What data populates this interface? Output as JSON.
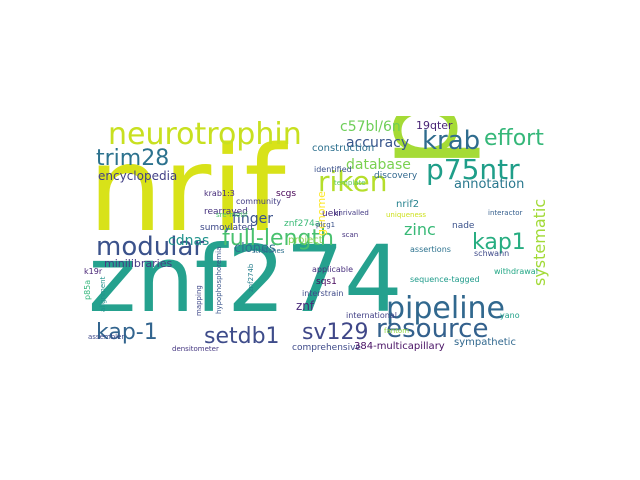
{
  "word_cloud": {
    "words": [
      {
        "text": "nrif",
        "color": "#d8e219"
      },
      {
        "text": "p75",
        "color": "#a5db36"
      },
      {
        "text": "znf274",
        "color": "#25a18e"
      },
      {
        "text": "neurotrophin",
        "color": "#c8e020"
      },
      {
        "text": "krab",
        "color": "#2f6c8e"
      },
      {
        "text": "effort",
        "color": "#35b779"
      },
      {
        "text": "p75ntr",
        "color": "#1f9e89"
      },
      {
        "text": "riken",
        "color": "#b5de2b"
      },
      {
        "text": "trim28",
        "color": "#2c728e"
      },
      {
        "text": "modular",
        "color": "#3b528b"
      },
      {
        "text": "full-length",
        "color": "#48c16e"
      },
      {
        "text": "kap1",
        "color": "#27ad81"
      },
      {
        "text": "pipeline",
        "color": "#31688e"
      },
      {
        "text": "resource",
        "color": "#34618d"
      },
      {
        "text": "kap-1",
        "color": "#32648e"
      },
      {
        "text": "setdb1",
        "color": "#3e4c8a"
      },
      {
        "text": "sv129",
        "color": "#3f4788"
      },
      {
        "text": "accuracy",
        "color": "#39568c"
      },
      {
        "text": "c57bl/6n",
        "color": "#6ece58"
      },
      {
        "text": "encyclopedia",
        "color": "#424086"
      },
      {
        "text": "annotation",
        "color": "#2a788e"
      },
      {
        "text": "database",
        "color": "#7ad151"
      },
      {
        "text": "finger",
        "color": "#3b528b"
      },
      {
        "text": "cdnas",
        "color": "#20938c"
      },
      {
        "text": "zinc",
        "color": "#38b977"
      },
      {
        "text": "systematic",
        "color": "#a2da37"
      },
      {
        "text": "clones",
        "color": "#2e6f8e"
      },
      {
        "text": "minilibraries",
        "color": "#443a83"
      },
      {
        "text": "genome",
        "color": "#fde725"
      },
      {
        "text": "znf",
        "color": "#482878"
      },
      {
        "text": "rearrayed",
        "color": "#46327e"
      },
      {
        "text": "sumoylated",
        "color": "#3e4989"
      },
      {
        "text": "krab1:3",
        "color": "#472d7b"
      },
      {
        "text": "community",
        "color": "#433e85"
      },
      {
        "text": "scgs",
        "color": "#440154"
      },
      {
        "text": "19qter",
        "color": "#482475"
      },
      {
        "text": "construction",
        "color": "#2d708e"
      },
      {
        "text": "discovery",
        "color": "#31688e"
      },
      {
        "text": "identified",
        "color": "#3b528b"
      },
      {
        "text": "project",
        "color": "#84d44b"
      },
      {
        "text": "znf274a",
        "color": "#3aba76"
      },
      {
        "text": "nrif2",
        "color": "#26828e"
      },
      {
        "text": "sre-motif",
        "color": "#4ac16d"
      },
      {
        "text": "applicable",
        "color": "#472f7d"
      },
      {
        "text": "sqs1",
        "color": "#46085c"
      },
      {
        "text": "interstrain",
        "color": "#3e4989"
      },
      {
        "text": "comprehensive",
        "color": "#3e4a89"
      },
      {
        "text": "384-multicapillary",
        "color": "#471063"
      },
      {
        "text": "sympathetic",
        "color": "#31688e"
      },
      {
        "text": "international",
        "color": "#424186"
      },
      {
        "text": "sequence-tagged",
        "color": "#1e9b8a"
      },
      {
        "text": "nade",
        "color": "#3b528b"
      },
      {
        "text": "assertions",
        "color": "#2c728e"
      },
      {
        "text": "schwann",
        "color": "#3e4989"
      },
      {
        "text": "withdrawal",
        "color": "#22a785"
      },
      {
        "text": "interactor",
        "color": "#355f8d"
      },
      {
        "text": "yano",
        "color": "#1fa088"
      },
      {
        "text": "k19r",
        "color": "#482576"
      },
      {
        "text": "p85a",
        "color": "#32b67a"
      },
      {
        "text": "ueki",
        "color": "#472a7a"
      },
      {
        "text": "uniqueness",
        "color": "#cde11d"
      },
      {
        "text": "znf274b",
        "color": "#277f8e"
      },
      {
        "text": "hypophosphoremia",
        "color": "#39558c"
      },
      {
        "text": "plcg1",
        "color": "#3b528b"
      },
      {
        "text": "scan",
        "color": "#46337f"
      },
      {
        "text": "unrivalled",
        "color": "#443b84"
      },
      {
        "text": "template",
        "color": "#5ec962"
      },
      {
        "text": "stretches",
        "color": "#2d708e"
      },
      {
        "text": "mapping",
        "color": "#3f4788"
      },
      {
        "text": "alignment",
        "color": "#21918c"
      },
      {
        "text": "assembler",
        "color": "#3e4989"
      },
      {
        "text": "densitometer",
        "color": "#453781"
      },
      {
        "text": "fantom",
        "color": "#90d743"
      }
    ]
  }
}
